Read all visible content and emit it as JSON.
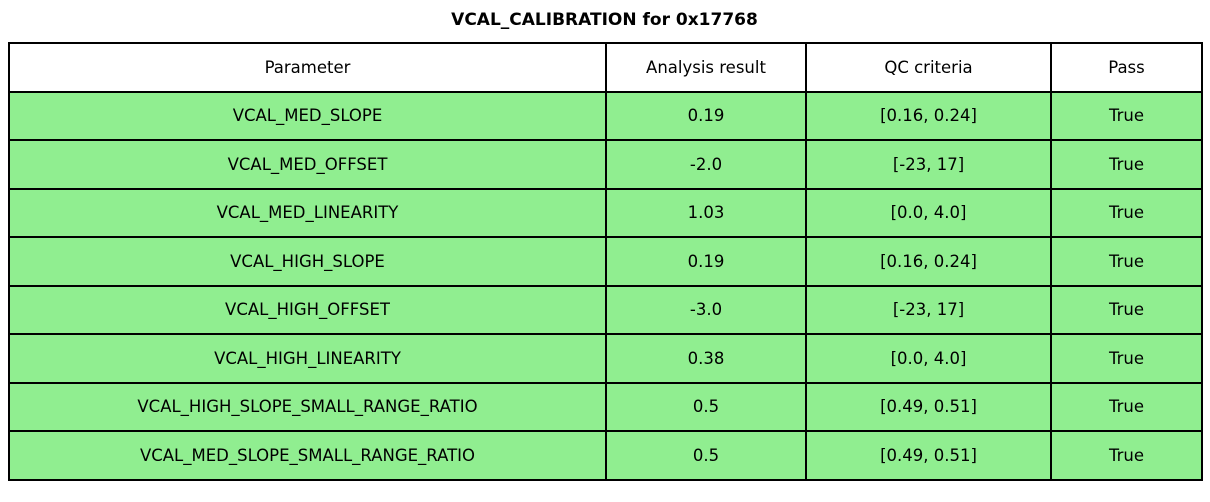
{
  "title": "VCAL_CALIBRATION for 0x17768",
  "colors": {
    "pass_row_bg": "#90EE90",
    "header_bg": "#FFFFFF",
    "border": "#000000",
    "text": "#000000"
  },
  "chart_data": {
    "type": "table",
    "title": "VCAL_CALIBRATION for 0x17768",
    "columns": [
      "Parameter",
      "Analysis result",
      "QC criteria",
      "Pass"
    ],
    "rows": [
      {
        "parameter": "VCAL_MED_SLOPE",
        "analysis_result": "0.19",
        "qc_criteria": "[0.16, 0.24]",
        "pass": "True"
      },
      {
        "parameter": "VCAL_MED_OFFSET",
        "analysis_result": "-2.0",
        "qc_criteria": "[-23, 17]",
        "pass": "True"
      },
      {
        "parameter": "VCAL_MED_LINEARITY",
        "analysis_result": "1.03",
        "qc_criteria": "[0.0, 4.0]",
        "pass": "True"
      },
      {
        "parameter": "VCAL_HIGH_SLOPE",
        "analysis_result": "0.19",
        "qc_criteria": "[0.16, 0.24]",
        "pass": "True"
      },
      {
        "parameter": "VCAL_HIGH_OFFSET",
        "analysis_result": "-3.0",
        "qc_criteria": "[-23, 17]",
        "pass": "True"
      },
      {
        "parameter": "VCAL_HIGH_LINEARITY",
        "analysis_result": "0.38",
        "qc_criteria": "[0.0, 4.0]",
        "pass": "True"
      },
      {
        "parameter": "VCAL_HIGH_SLOPE_SMALL_RANGE_RATIO",
        "analysis_result": "0.5",
        "qc_criteria": "[0.49, 0.51]",
        "pass": "True"
      },
      {
        "parameter": "VCAL_MED_SLOPE_SMALL_RANGE_RATIO",
        "analysis_result": "0.5",
        "qc_criteria": "[0.49, 0.51]",
        "pass": "True"
      }
    ],
    "layout": {
      "header_background": "#FFFFFF",
      "row_background": "#90EE90",
      "grid": "on"
    }
  }
}
